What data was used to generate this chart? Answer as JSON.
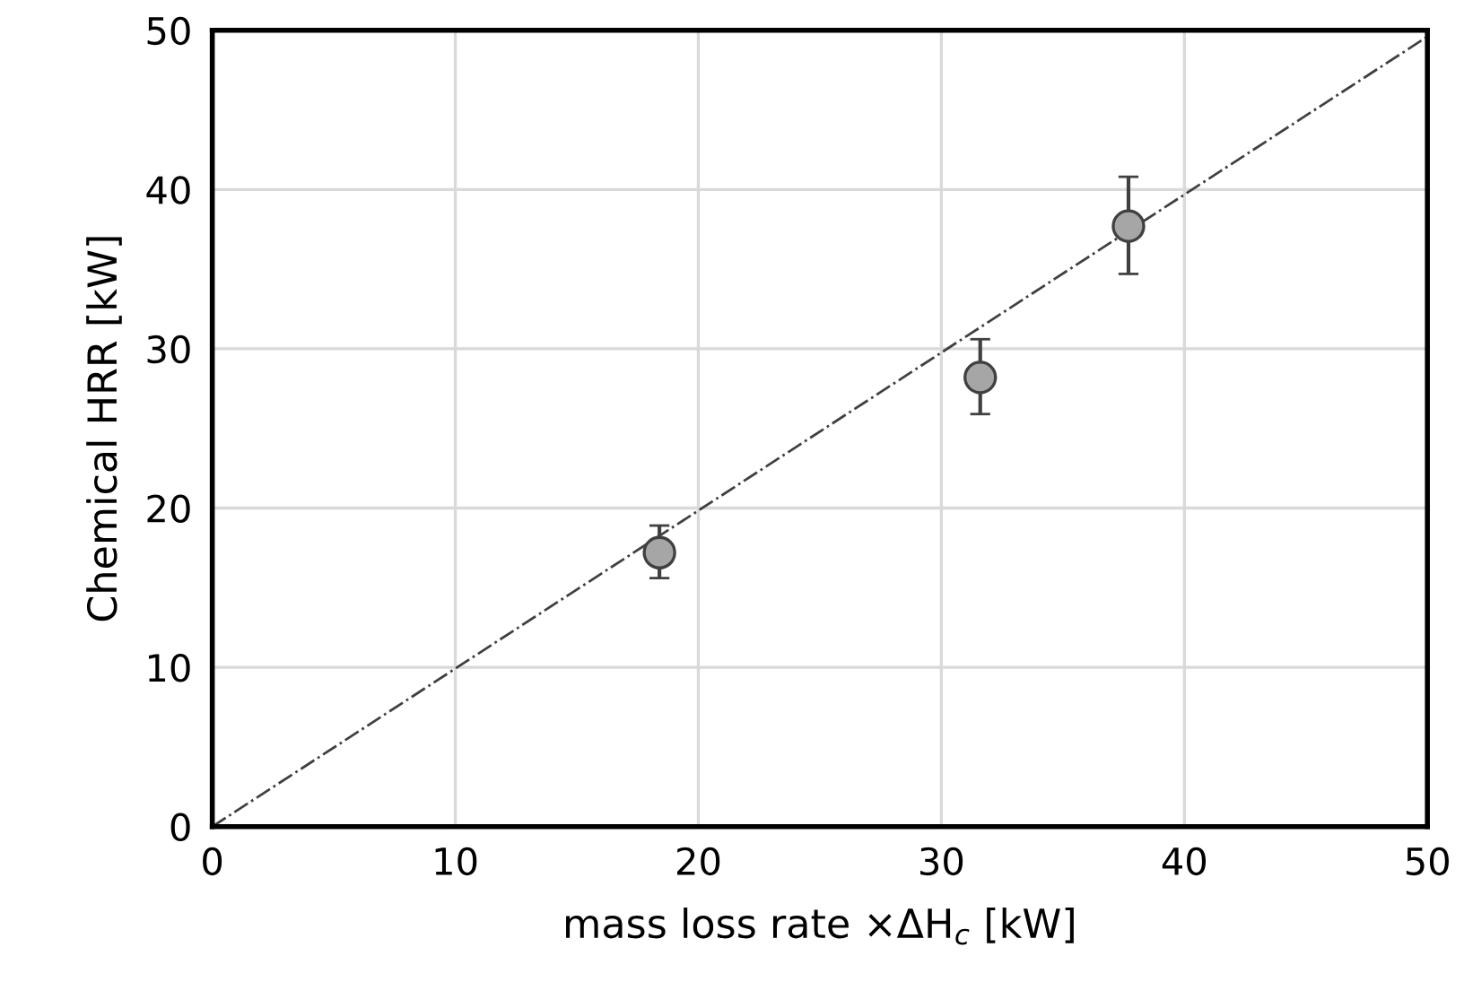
{
  "chart_data": {
    "type": "scatter",
    "xlabel": "mass loss rate ×ΔH$_{c}$ [kW]",
    "ylabel": "Chemical HRR [kW]",
    "xlim": [
      0,
      50
    ],
    "ylim": [
      0,
      50
    ],
    "xticks": [
      0,
      10,
      20,
      30,
      40,
      50
    ],
    "yticks": [
      0,
      10,
      20,
      30,
      40,
      50
    ],
    "grid": true,
    "legend": false,
    "series": [
      {
        "color": "#a6a6a6",
        "marker": "circle",
        "x": [
          18.4,
          31.6,
          37.7
        ],
        "values": [
          17.2,
          28.2,
          37.7
        ],
        "errors": [
          [
            15.6,
            18.9
          ],
          [
            25.9,
            30.6
          ],
          [
            34.7,
            40.8
          ]
        ]
      },
      {
        "type": "line",
        "color": "#404040",
        "line_style": "dashdot",
        "marker": "none",
        "x": [
          0,
          50
        ],
        "values": [
          0,
          49.6
        ]
      }
    ]
  }
}
